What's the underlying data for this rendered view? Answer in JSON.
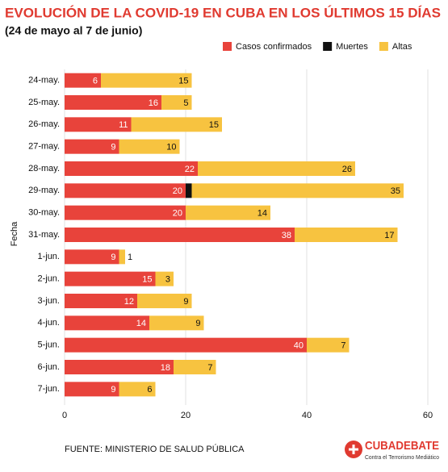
{
  "chart_data": {
    "type": "stacked-barh",
    "title": "EVOLUCIÓN DE LA COVID-19 EN CUBA EN LOS ÚLTIMOS 15 DÍAS",
    "subtitle": "(24 de mayo al 7 de junio)",
    "y_label": "Fecha",
    "source": "FUENTE: MINISTERIO DE SALUD PÚBLICA",
    "logo": "CUBADEBATE",
    "logo_tagline": "Contra el Terrorismo Mediático",
    "categories": [
      "24-may.",
      "25-may.",
      "26-may.",
      "27-may.",
      "28-may.",
      "29-may.",
      "30-may.",
      "31-may.",
      "1-jun.",
      "2-jun.",
      "3-jun.",
      "4-jun.",
      "5-jun.",
      "6-jun.",
      "7-jun."
    ],
    "series": [
      {
        "name": "Casos confirmados",
        "color": "#e8433b",
        "values": [
          6,
          16,
          11,
          9,
          22,
          20,
          20,
          38,
          9,
          15,
          12,
          14,
          40,
          18,
          9
        ]
      },
      {
        "name": "Muertes",
        "color": "#111111",
        "values": [
          null,
          0,
          null,
          null,
          null,
          1,
          null,
          null,
          null,
          null,
          null,
          null,
          null,
          null,
          null
        ]
      },
      {
        "name": "Altas",
        "color": "#f7c340",
        "values": [
          15,
          5,
          15,
          10,
          26,
          35,
          14,
          17,
          1,
          3,
          9,
          9,
          7,
          7,
          6
        ]
      }
    ],
    "xlim": [
      0,
      60
    ],
    "xticks": [
      0,
      20,
      40,
      60
    ],
    "grid": true
  }
}
